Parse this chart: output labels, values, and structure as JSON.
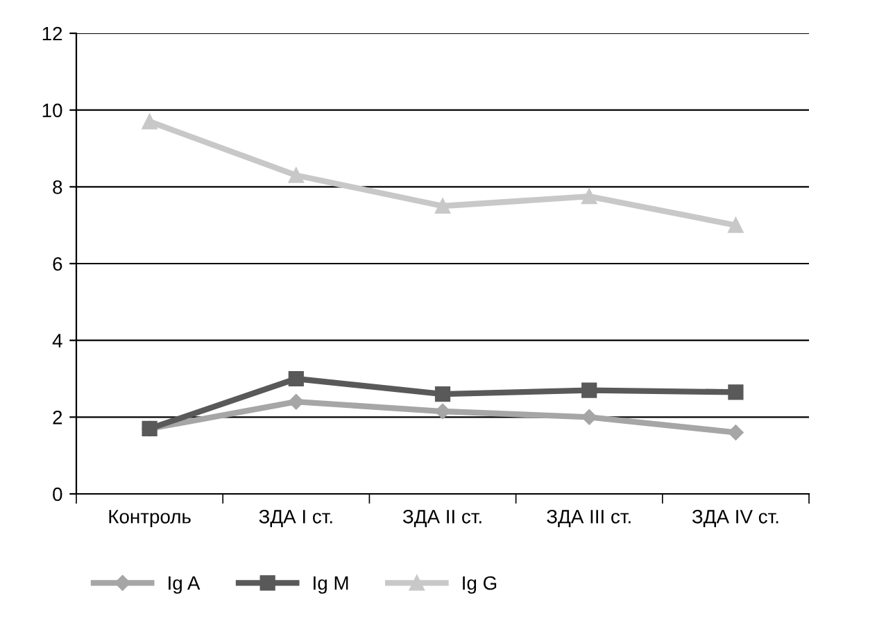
{
  "chart_data": {
    "type": "line",
    "categories": [
      "Контроль",
      "ЗДА I ст.",
      "ЗДА II ст.",
      "ЗДА III ст.",
      "ЗДА IV ст."
    ],
    "series": [
      {
        "name": "Ig A",
        "color": "#a6a6a6",
        "marker": "diamond",
        "values": [
          1.7,
          2.4,
          2.15,
          2.0,
          1.6
        ]
      },
      {
        "name": "Ig M",
        "color": "#595959",
        "marker": "square",
        "values": [
          1.7,
          3.0,
          2.6,
          2.7,
          2.65
        ]
      },
      {
        "name": "Ig G",
        "color": "#c8c8c8",
        "marker": "triangle",
        "values": [
          9.7,
          8.3,
          7.5,
          7.75,
          7.0
        ]
      }
    ],
    "ylim": [
      0,
      12
    ],
    "yticks": [
      0,
      2,
      4,
      6,
      8,
      10,
      12
    ],
    "grid": "y",
    "legend": "bottom",
    "line_style": "solid"
  }
}
